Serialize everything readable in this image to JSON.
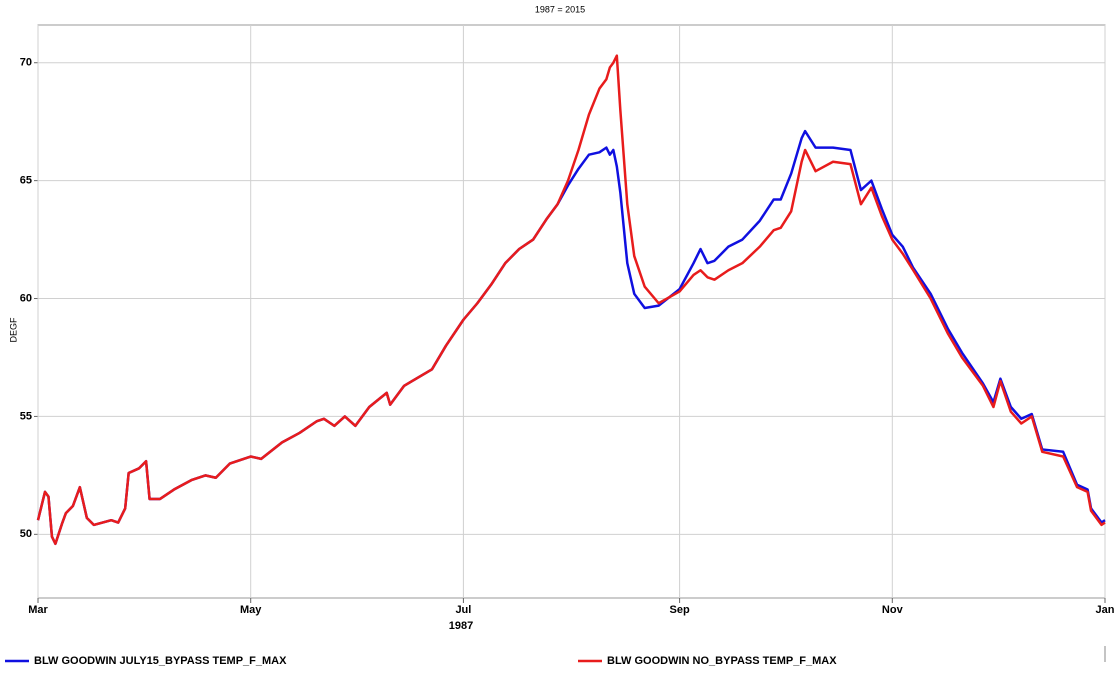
{
  "chart_data": {
    "type": "line",
    "title": "1987 = 2015",
    "y_label": "DEGF",
    "x_label": "1987",
    "grid": true,
    "legend": "bottom",
    "xlim": [
      0,
      306
    ],
    "ylim": [
      47.3,
      71.6
    ],
    "xticks": [
      {
        "value": 0,
        "label": "Mar"
      },
      {
        "value": 61,
        "label": "May"
      },
      {
        "value": 122,
        "label": "Jul"
      },
      {
        "value": 184,
        "label": "Sep"
      },
      {
        "value": 245,
        "label": "Nov"
      },
      {
        "value": 306,
        "label": "Jan"
      }
    ],
    "yticks": [
      50,
      55,
      60,
      65,
      70
    ],
    "x": [
      0,
      2,
      3,
      4,
      5,
      7,
      8,
      10,
      12,
      14,
      16,
      21,
      23,
      25,
      26,
      29,
      31,
      32,
      35,
      39,
      44,
      48,
      51,
      55,
      61,
      64,
      70,
      75,
      80,
      82,
      85,
      88,
      91,
      95,
      100,
      101,
      105,
      113,
      117,
      122,
      126,
      130,
      134,
      138,
      142,
      146,
      149,
      152,
      155,
      158,
      161,
      163,
      164,
      165,
      166,
      167,
      169,
      171,
      174,
      178,
      184,
      188,
      190,
      192,
      194,
      198,
      202,
      207,
      211,
      213,
      216,
      219,
      220,
      223,
      228,
      233,
      236,
      239,
      242,
      245,
      248,
      251,
      256,
      261,
      265,
      271,
      274,
      276,
      279,
      282,
      285,
      288,
      294,
      298,
      301,
      302,
      305,
      306
    ],
    "series": [
      {
        "name": "BLW GOODWIN JULY15_BYPASS TEMP_F_MAX",
        "color": "#1010e0",
        "values": [
          50.6,
          51.8,
          51.6,
          49.9,
          49.6,
          50.5,
          50.9,
          51.2,
          52.0,
          50.7,
          50.4,
          50.6,
          50.5,
          51.1,
          52.6,
          52.8,
          53.1,
          51.5,
          51.5,
          51.9,
          52.3,
          52.5,
          52.4,
          53.0,
          53.3,
          53.2,
          53.9,
          54.3,
          54.8,
          54.9,
          54.6,
          55.0,
          54.6,
          55.4,
          56.0,
          55.5,
          56.3,
          57.0,
          58.0,
          59.1,
          59.8,
          60.6,
          61.5,
          62.1,
          62.5,
          63.4,
          64.0,
          64.8,
          65.5,
          66.1,
          66.2,
          66.4,
          66.1,
          66.3,
          65.6,
          64.5,
          61.5,
          60.2,
          59.6,
          59.7,
          60.4,
          61.5,
          62.1,
          61.5,
          61.6,
          62.2,
          62.5,
          63.3,
          64.2,
          64.2,
          65.3,
          66.8,
          67.1,
          66.4,
          66.4,
          66.3,
          64.6,
          65.0,
          63.8,
          62.7,
          62.2,
          61.3,
          60.2,
          58.7,
          57.7,
          56.4,
          55.6,
          56.6,
          55.4,
          54.9,
          55.1,
          53.6,
          53.5,
          52.1,
          51.9,
          51.1,
          50.5,
          50.6
        ]
      },
      {
        "name": "BLW GOODWIN NO_BYPASS TEMP_F_MAX",
        "color": "#e81c1c",
        "values": [
          50.6,
          51.8,
          51.6,
          49.9,
          49.6,
          50.5,
          50.9,
          51.2,
          52.0,
          50.7,
          50.4,
          50.6,
          50.5,
          51.1,
          52.6,
          52.8,
          53.1,
          51.5,
          51.5,
          51.9,
          52.3,
          52.5,
          52.4,
          53.0,
          53.3,
          53.2,
          53.9,
          54.3,
          54.8,
          54.9,
          54.6,
          55.0,
          54.6,
          55.4,
          56.0,
          55.5,
          56.3,
          57.0,
          58.0,
          59.1,
          59.8,
          60.6,
          61.5,
          62.1,
          62.5,
          63.4,
          64.0,
          65.0,
          66.3,
          67.8,
          68.9,
          69.3,
          69.8,
          70.0,
          70.3,
          68.0,
          64.0,
          61.8,
          60.5,
          59.8,
          60.3,
          61.0,
          61.2,
          60.9,
          60.8,
          61.2,
          61.5,
          62.2,
          62.9,
          63.0,
          63.7,
          65.8,
          66.3,
          65.4,
          65.8,
          65.7,
          64.0,
          64.7,
          63.5,
          62.5,
          61.9,
          61.2,
          60.0,
          58.5,
          57.5,
          56.3,
          55.4,
          56.5,
          55.2,
          54.7,
          55.0,
          53.5,
          53.3,
          52.0,
          51.8,
          51.0,
          50.4,
          50.5
        ]
      }
    ]
  }
}
